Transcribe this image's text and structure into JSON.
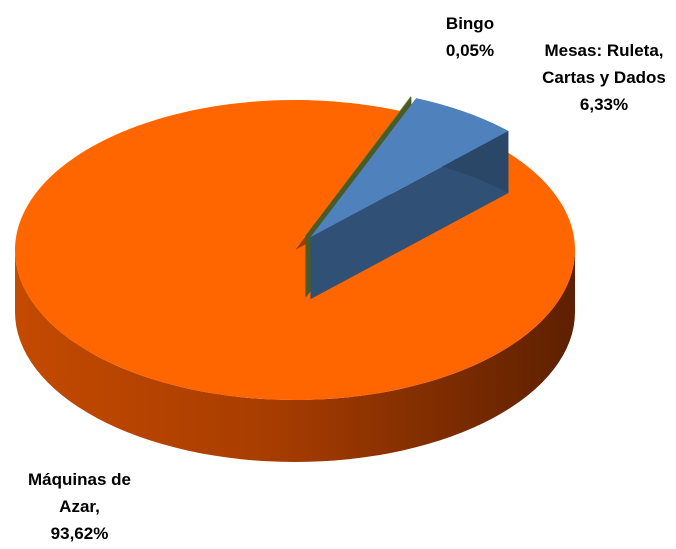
{
  "chart_data": {
    "type": "pie3d",
    "categories": [
      "Bingo",
      "Mesas: Ruleta, Cartas y Dados",
      "Máquinas de Azar,"
    ],
    "values": [
      0.05,
      6.33,
      93.62
    ],
    "value_labels": [
      "0,05%",
      "6,33%",
      "93,62%"
    ],
    "colors": [
      "#77933c",
      "#4f81bd",
      "#ff6600"
    ]
  }
}
